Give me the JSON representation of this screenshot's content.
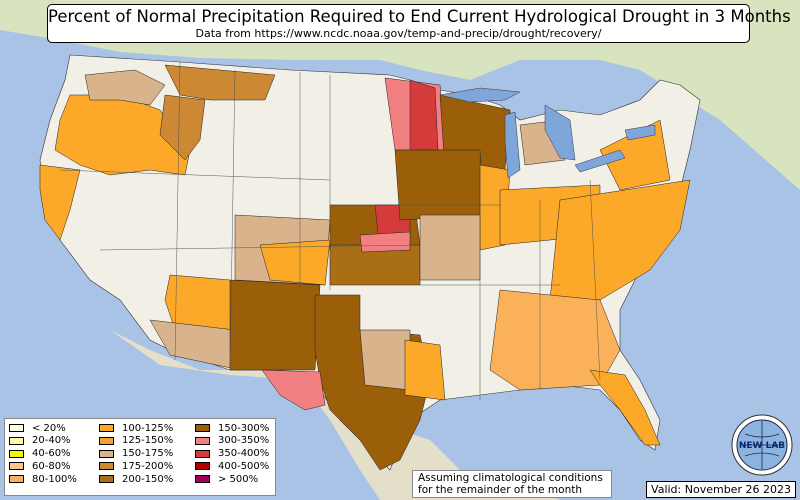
{
  "header": {
    "title": "Percent of Normal Precipitation Required to End Current Hydrological Drought in 3 Months",
    "subtitle": "Data from https://www.ncdc.noaa.gov/temp-and-precip/drought/recovery/"
  },
  "legend": {
    "items": [
      {
        "label": "< 20%",
        "color": "#fefee0"
      },
      {
        "label": "20-40%",
        "color": "#fefea0"
      },
      {
        "label": "40-60%",
        "color": "#f5f500"
      },
      {
        "label": "60-80%",
        "color": "#fcc58a"
      },
      {
        "label": "80-100%",
        "color": "#fbb15a"
      },
      {
        "label": "100-125%",
        "color": "#fca829"
      },
      {
        "label": "125-150%",
        "color": "#f5a033"
      },
      {
        "label": "150-175%",
        "color": "#d9b38c"
      },
      {
        "label": "175-200%",
        "color": "#cc8833"
      },
      {
        "label": "200-150%",
        "color": "#aa6e14"
      },
      {
        "label": "150-300%",
        "color": "#9a5f08"
      },
      {
        "label": "300-350%",
        "color": "#f28080"
      },
      {
        "label": "350-400%",
        "color": "#d43c3c"
      },
      {
        "label": "400-500%",
        "color": "#b00000"
      },
      {
        "label": "> 500%",
        "color": "#a0005a"
      }
    ]
  },
  "note": {
    "line1": "Assuming climatological conditions",
    "line2": "for the remainder of the month"
  },
  "valid": "Valid: November 26 2023",
  "logo": {
    "text": "NEW LAB",
    "icon": "globe-logo-icon"
  },
  "colors": {
    "ocean": "#a8c3e6",
    "land": "#f2efe6",
    "foreign_land": "#d8e3c0",
    "lake": "#7fa6d8"
  }
}
